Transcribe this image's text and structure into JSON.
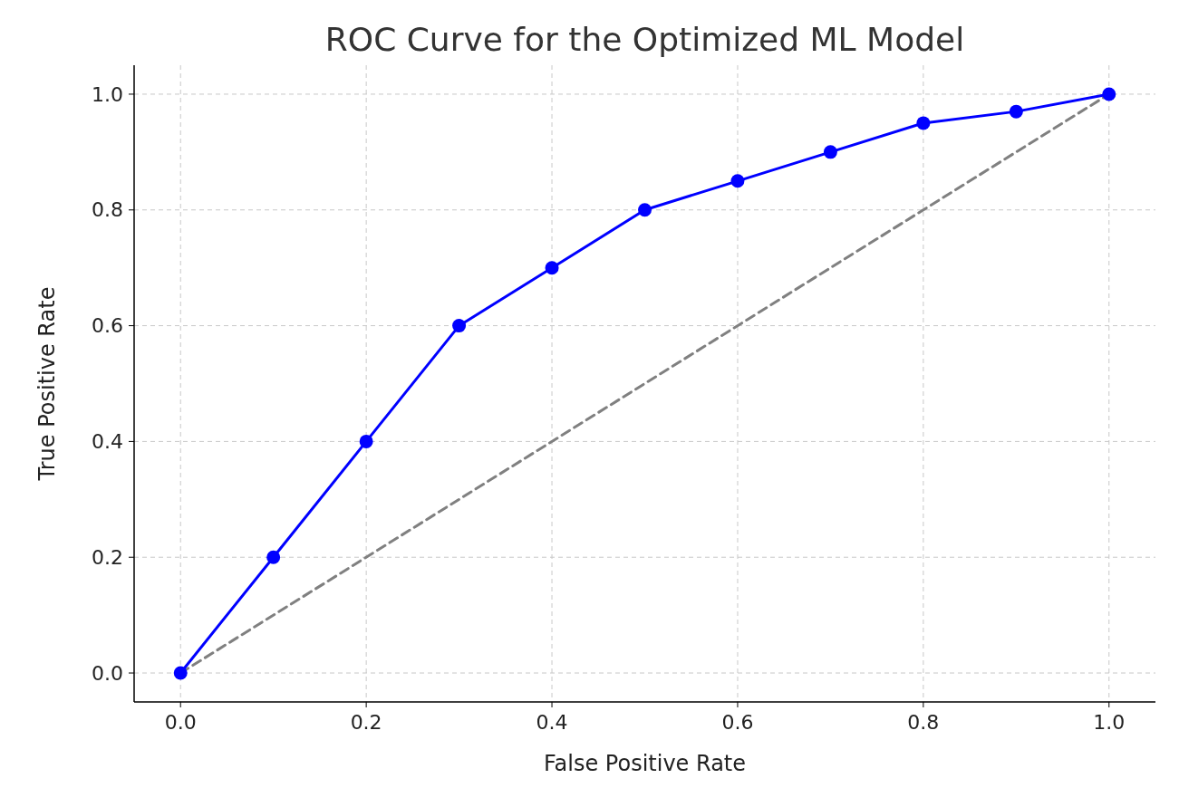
{
  "chart_data": {
    "type": "line",
    "title": "ROC Curve for the Optimized ML Model",
    "xlabel": "False Positive Rate",
    "ylabel": "True Positive Rate",
    "x": [
      0,
      0.1,
      0.2,
      0.3,
      0.4,
      0.5,
      0.6,
      0.7,
      0.8,
      0.9,
      1.0
    ],
    "series": [
      {
        "color": "#0000ff",
        "values": [
          0,
          0.2,
          0.4,
          0.6,
          0.7,
          0.8,
          0.85,
          0.9,
          0.95,
          0.97,
          1.0
        ],
        "marker": "circle",
        "line_style": "solid"
      },
      {
        "color": "#808080",
        "x": [
          0,
          1
        ],
        "values": [
          0,
          1
        ],
        "marker": "none",
        "line_style": "dashed"
      }
    ],
    "xlim": [
      -0.05,
      1.05
    ],
    "ylim": [
      -0.05,
      1.05
    ],
    "xticks": [
      {
        "value": 0,
        "label": "0.0"
      },
      {
        "value": 0.2,
        "label": "0.2"
      },
      {
        "value": 0.4,
        "label": "0.4"
      },
      {
        "value": 0.6,
        "label": "0.6"
      },
      {
        "value": 0.8,
        "label": "0.8"
      },
      {
        "value": 1,
        "label": "1.0"
      }
    ],
    "yticks": [
      {
        "value": 0,
        "label": "0.0"
      },
      {
        "value": 0.2,
        "label": "0.2"
      },
      {
        "value": 0.4,
        "label": "0.4"
      },
      {
        "value": 0.6,
        "label": "0.6"
      },
      {
        "value": 0.8,
        "label": "0.8"
      },
      {
        "value": 1,
        "label": "1.0"
      }
    ],
    "grid": true
  }
}
